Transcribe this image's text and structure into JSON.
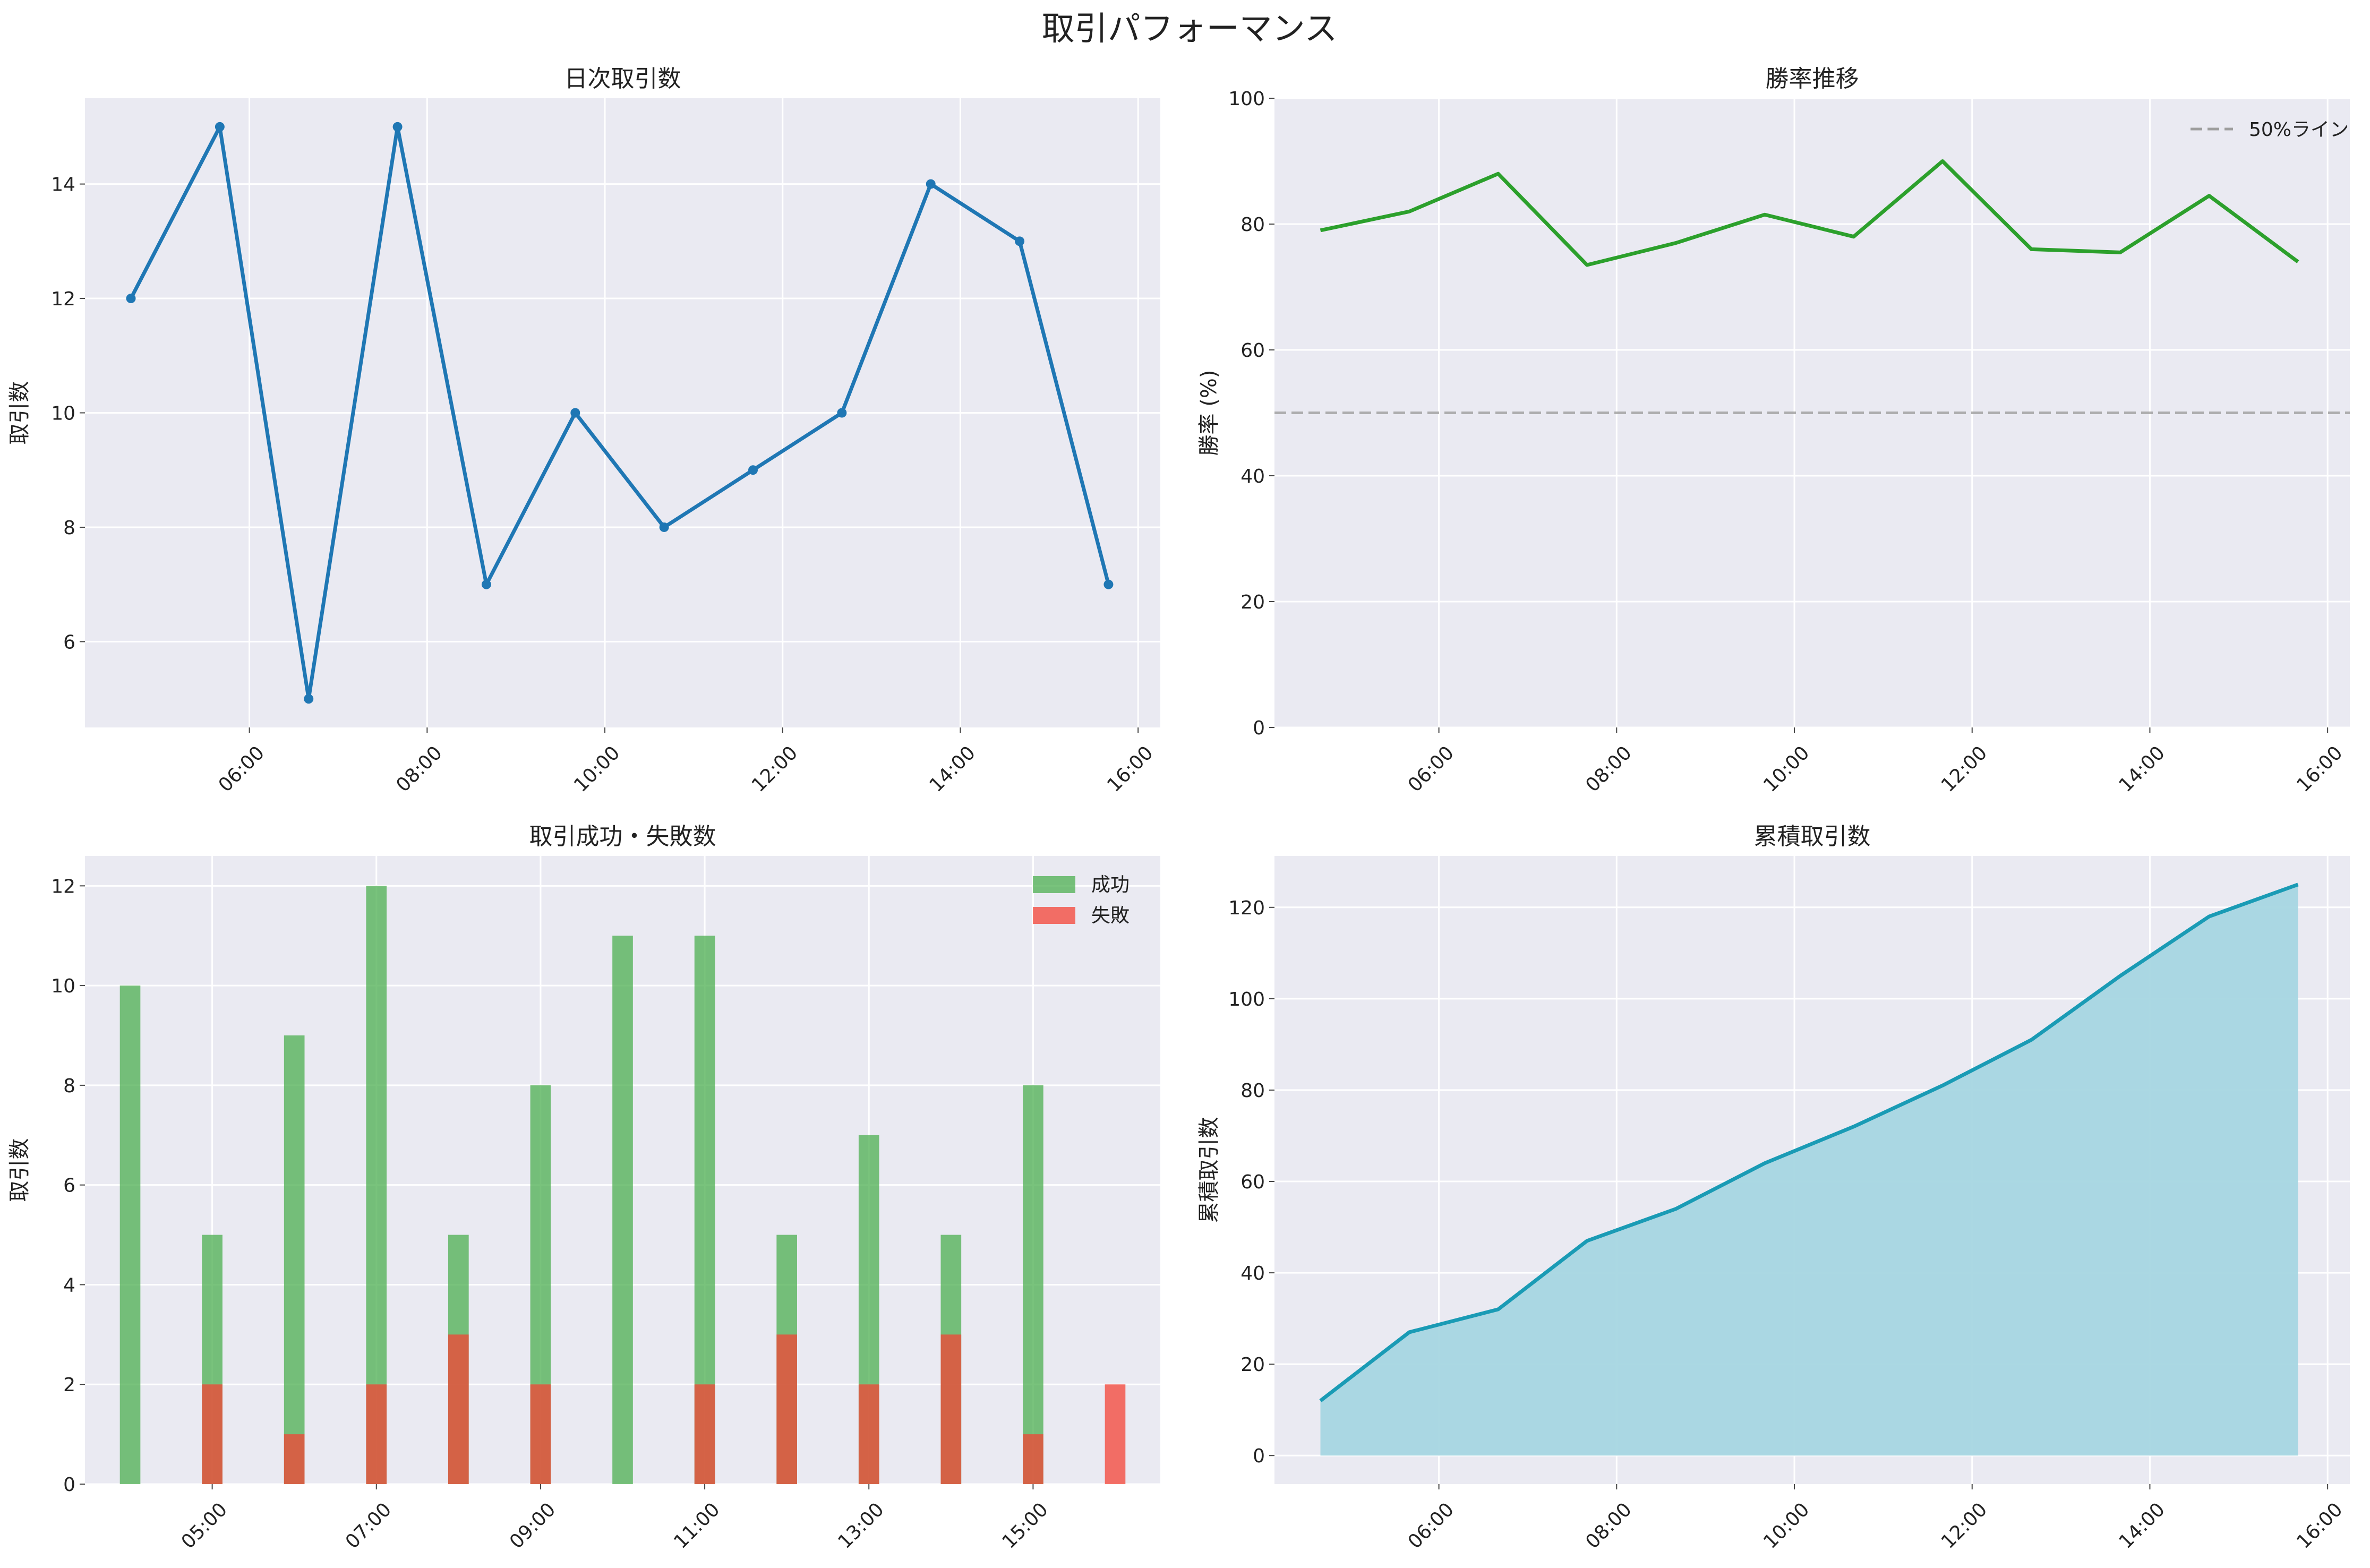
{
  "figure": {
    "title": "取引パフォーマンス"
  },
  "chart_data": [
    {
      "id": "daily",
      "type": "line",
      "title": "日次取引数",
      "xlabel": "",
      "ylabel": "取引数",
      "x_hours": [
        4.667,
        5.667,
        6.667,
        7.667,
        8.667,
        9.667,
        10.667,
        11.667,
        12.667,
        13.667,
        14.667,
        15.667
      ],
      "values": [
        12,
        15,
        5,
        15,
        7,
        10,
        8,
        9,
        10,
        14,
        13,
        7
      ],
      "xlim": [
        4.15,
        16.25
      ],
      "ylim": [
        4.5,
        15.5
      ],
      "xticks": [
        6,
        8,
        10,
        12,
        14,
        16
      ],
      "xtick_labels": [
        "06:00",
        "08:00",
        "10:00",
        "12:00",
        "14:00",
        "16:00"
      ],
      "yticks": [
        6,
        8,
        10,
        12,
        14
      ],
      "ytick_labels": [
        "6",
        "8",
        "10",
        "12",
        "14"
      ],
      "color": "#1f77b4",
      "markers": true,
      "grid": true
    },
    {
      "id": "winrate",
      "type": "line",
      "title": "勝率推移",
      "xlabel": "",
      "ylabel": "勝率 (%)",
      "x_hours": [
        4.667,
        5.667,
        6.667,
        7.667,
        8.667,
        9.667,
        10.667,
        11.667,
        12.667,
        13.667,
        14.667,
        15.667
      ],
      "values": [
        79,
        82,
        88,
        73.5,
        77,
        81.5,
        78,
        90,
        76,
        75.5,
        84.5,
        74
      ],
      "xlim": [
        4.15,
        16.25
      ],
      "ylim": [
        0,
        100
      ],
      "xticks": [
        6,
        8,
        10,
        12,
        14,
        16
      ],
      "xtick_labels": [
        "06:00",
        "08:00",
        "10:00",
        "12:00",
        "14:00",
        "16:00"
      ],
      "yticks": [
        0,
        20,
        40,
        60,
        80,
        100
      ],
      "ytick_labels": [
        "0",
        "20",
        "40",
        "60",
        "80",
        "100"
      ],
      "color": "#2ca02c",
      "reference_line": {
        "y": 50,
        "label": "50%ライン",
        "color": "#9e9e9e"
      },
      "legend": "top-right",
      "grid": true
    },
    {
      "id": "successfail",
      "type": "bar",
      "title": "取引成功・失敗数",
      "xlabel": "",
      "ylabel": "取引数",
      "x_hours": [
        4.0,
        5.0,
        6.0,
        7.0,
        8.0,
        9.0,
        10.0,
        11.0,
        12.0,
        13.0,
        14.0,
        15.0,
        16.0
      ],
      "series": [
        {
          "name": "成功",
          "values": [
            10,
            5,
            9,
            12,
            5,
            8,
            11,
            11,
            5,
            7,
            5,
            8,
            0
          ],
          "color": "#4caf50"
        },
        {
          "name": "失敗",
          "values": [
            0,
            2,
            1,
            2,
            3,
            2,
            0,
            2,
            3,
            2,
            3,
            1,
            2
          ],
          "color": "#f44336"
        }
      ],
      "xlim": [
        3.45,
        16.55
      ],
      "ylim": [
        0,
        12.6
      ],
      "xticks": [
        5,
        7,
        9,
        11,
        13,
        15
      ],
      "xtick_labels": [
        "05:00",
        "07:00",
        "09:00",
        "11:00",
        "13:00",
        "15:00"
      ],
      "yticks": [
        0,
        2,
        4,
        6,
        8,
        10,
        12
      ],
      "ytick_labels": [
        "0",
        "2",
        "4",
        "6",
        "8",
        "10",
        "12"
      ],
      "legend": "top-right",
      "grid": true
    },
    {
      "id": "cumulative",
      "type": "area",
      "title": "累積取引数",
      "xlabel": "",
      "ylabel": "累積取引数",
      "x_hours": [
        4.667,
        5.667,
        6.667,
        7.667,
        8.667,
        9.667,
        10.667,
        11.667,
        12.667,
        13.667,
        14.667,
        15.667
      ],
      "values": [
        12,
        27,
        32,
        47,
        54,
        64,
        72,
        81,
        91,
        105,
        118,
        125
      ],
      "xlim": [
        4.15,
        16.25
      ],
      "ylim": [
        -6.25,
        131.25
      ],
      "xticks": [
        6,
        8,
        10,
        12,
        14,
        16
      ],
      "xtick_labels": [
        "06:00",
        "08:00",
        "10:00",
        "12:00",
        "14:00",
        "16:00"
      ],
      "yticks": [
        0,
        20,
        40,
        60,
        80,
        100,
        120
      ],
      "ytick_labels": [
        "0",
        "20",
        "40",
        "60",
        "80",
        "100",
        "120"
      ],
      "color": "#1a9bb5",
      "fill_color": "#a6d6e2",
      "grid": true
    }
  ]
}
